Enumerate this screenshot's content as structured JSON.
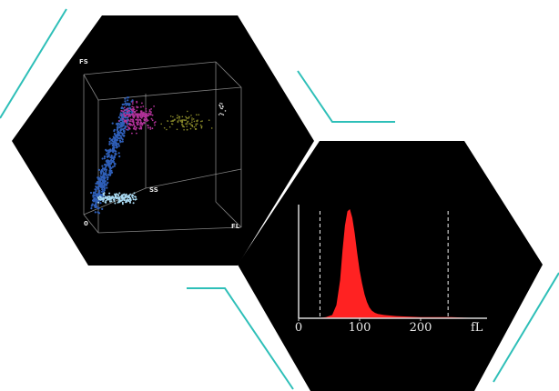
{
  "colors": {
    "background": "#ffffff",
    "hexagon_fill": "#000000",
    "accent_lines": "#2ebfb8",
    "histogram_fill": "#ff2222",
    "axis": "#d8d8d8",
    "cube_edges": "#9a9a9a",
    "population_lymphocytes": "#2f5fb8",
    "population_monocytes": "#b3329a",
    "population_granulocytes": "#8a8a2a",
    "population_debris": "#a8d8f0"
  },
  "chart_data": [
    {
      "type": "scatter",
      "projection": "3d",
      "axes": {
        "y": "FS",
        "z": "SS",
        "x": "FL",
        "origin": "0"
      },
      "grid": false,
      "legend": "none"
    },
    {
      "type": "area",
      "x_ticks": [
        "0",
        "100",
        "200"
      ],
      "x_unit": "fL",
      "xlim": [
        0,
        300
      ],
      "threshold_lines": [
        35,
        245
      ],
      "series": [
        {
          "x": [
            0,
            30,
            45,
            55,
            62,
            68,
            72,
            76,
            80,
            84,
            88,
            92,
            96,
            100,
            104,
            108,
            112,
            116,
            120,
            125,
            130,
            140,
            160,
            200,
            250,
            300
          ],
          "y": [
            0,
            0,
            1,
            3,
            12,
            35,
            62,
            85,
            98,
            100,
            92,
            78,
            60,
            44,
            32,
            22,
            15,
            10,
            7,
            5,
            4,
            3,
            2,
            1,
            1,
            0
          ]
        }
      ]
    }
  ]
}
